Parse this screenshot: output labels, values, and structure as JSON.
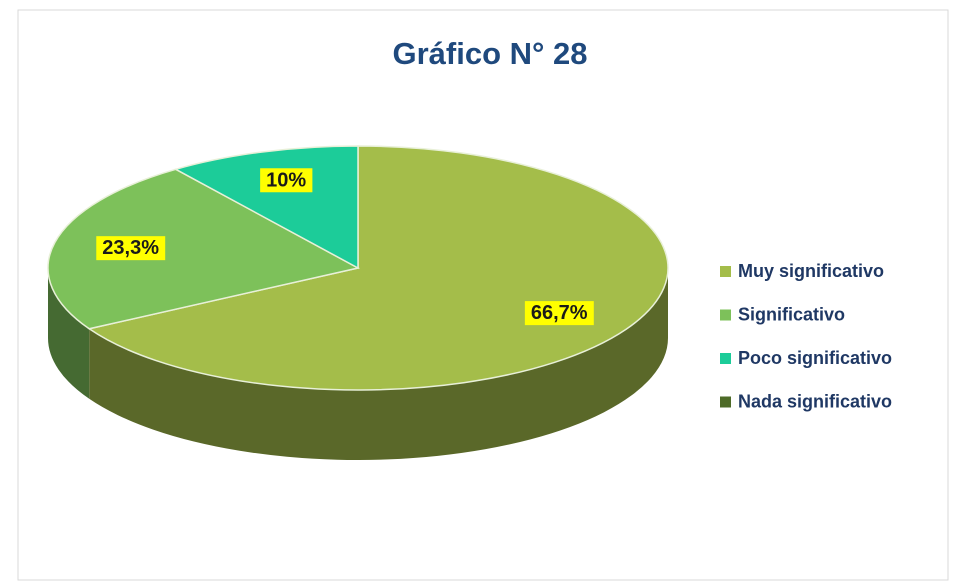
{
  "chart_data": {
    "type": "pie",
    "title": "Gráfico N° 28",
    "categories": [
      "Muy significativo",
      "Significativo",
      "Poco significativo",
      "Nada significativo"
    ],
    "values": [
      66.7,
      23.3,
      10,
      0
    ],
    "value_labels": [
      "66,7%",
      "23,3%",
      "10%",
      null
    ],
    "colors": [
      "#a4bd4a",
      "#7dc15a",
      "#1ccc99",
      "#4e6b28"
    ],
    "legend": "right"
  }
}
